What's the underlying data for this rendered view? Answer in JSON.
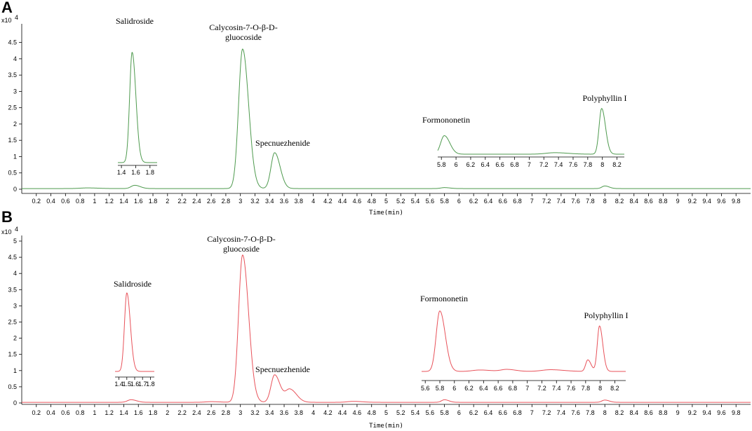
{
  "chart_data": [
    {
      "panel": "A",
      "type": "line",
      "color": "#4e9a4e",
      "scale_label": "x10",
      "scale_exp": "4",
      "xlabel": "Time(min)",
      "xlim": [
        0,
        10
      ],
      "ylim": [
        0,
        4.9
      ],
      "y_ticks": [
        "0",
        "0.5",
        "1",
        "1.5",
        "2",
        "2.5",
        "3",
        "3.5",
        "4",
        "4.5"
      ],
      "x_ticks": [
        "0.2",
        "0.4",
        "0.6",
        "0.8",
        "1",
        "1.2",
        "1.4",
        "1.6",
        "1.8",
        "2",
        "2.2",
        "2.4",
        "2.6",
        "2.8",
        "3",
        "3.2",
        "3.4",
        "3.6",
        "3.8",
        "4",
        "4.2",
        "4.4",
        "4.6",
        "4.8",
        "5",
        "5.2",
        "5.4",
        "5.6",
        "5.8",
        "6",
        "6.2",
        "6.4",
        "6.6",
        "6.8",
        "7",
        "7.2",
        "7.4",
        "7.6",
        "7.8",
        "8",
        "8.2",
        "8.4",
        "8.6",
        "8.8",
        "9",
        "9.2",
        "9.4",
        "9.6",
        "9.8"
      ],
      "baseline": 0.02,
      "peaks": [
        {
          "t": 0.9,
          "h": 0.02,
          "w": 0.1
        },
        {
          "t": 1.55,
          "h": 0.1,
          "w": 0.05
        },
        {
          "t": 3.03,
          "h": 4.28,
          "w": 0.055
        },
        {
          "t": 3.47,
          "h": 1.1,
          "w": 0.05
        },
        {
          "t": 5.8,
          "h": 0.03,
          "w": 0.05
        },
        {
          "t": 8.0,
          "h": 0.08,
          "w": 0.04
        }
      ],
      "annotations": [
        {
          "label": "Calycosin-7-O-β-D-",
          "t": 3.03
        },
        {
          "label": "gluocoside",
          "t": 3.03
        },
        {
          "label": "Specnuezhenide",
          "t": 3.47
        }
      ],
      "insets": [
        {
          "title": "Salidroside",
          "x_ticks": [
            "1.4",
            "1.6",
            "1.8"
          ],
          "xlim": [
            1.35,
            1.9
          ],
          "peaks": [
            {
              "t": 1.55,
              "h": 4.7,
              "w": 0.035
            }
          ],
          "baseline": 0.85
        },
        {
          "title": "Formononetin",
          "x_ticks": [
            "5.8",
            "6",
            "6.2",
            "6.4",
            "6.6",
            "6.8",
            "7",
            "7.2",
            "7.4",
            "7.6",
            "7.8",
            "8",
            "8.2"
          ],
          "xlim": [
            5.75,
            8.3
          ],
          "peaks": [
            {
              "t": 5.84,
              "h": 1.85,
              "w": 0.05
            },
            {
              "t": 7.35,
              "h": 1.16,
              "w": 0.12
            },
            {
              "t": 7.99,
              "h": 2.95,
              "w": 0.035
            }
          ],
          "baseline": 1.1,
          "second_title": "Polyphyllin I"
        }
      ]
    },
    {
      "panel": "B",
      "type": "line",
      "color": "#e8525a",
      "scale_label": "x10",
      "scale_exp": "4",
      "xlabel": "Time(min)",
      "xlim": [
        0,
        10
      ],
      "ylim": [
        0,
        5
      ],
      "y_ticks": [
        "0",
        "0.5",
        "1",
        "1.5",
        "2",
        "2.5",
        "3",
        "3.5",
        "4",
        "4.5",
        "5"
      ],
      "x_ticks": [
        "0.2",
        "0.4",
        "0.6",
        "0.8",
        "1",
        "1.2",
        "1.4",
        "1.6",
        "1.8",
        "2",
        "2.2",
        "2.4",
        "2.6",
        "2.8",
        "3",
        "3.2",
        "3.4",
        "3.6",
        "3.8",
        "4",
        "4.2",
        "4.4",
        "4.6",
        "4.8",
        "5",
        "5.2",
        "5.4",
        "5.6",
        "5.8",
        "6",
        "6.2",
        "6.4",
        "6.6",
        "6.8",
        "7",
        "7.2",
        "7.4",
        "7.6",
        "7.8",
        "8",
        "8.2",
        "8.4",
        "8.6",
        "8.8",
        "9",
        "9.2",
        "9.4",
        "9.6",
        "9.8"
      ],
      "baseline": 0.02,
      "peaks": [
        {
          "t": 1.5,
          "h": 0.08,
          "w": 0.05
        },
        {
          "t": 2.6,
          "h": 0.02,
          "w": 0.08
        },
        {
          "t": 3.03,
          "h": 4.55,
          "w": 0.055
        },
        {
          "t": 3.47,
          "h": 0.85,
          "w": 0.05
        },
        {
          "t": 3.68,
          "h": 0.4,
          "w": 0.06
        },
        {
          "t": 4.55,
          "h": 0.03,
          "w": 0.08
        },
        {
          "t": 5.8,
          "h": 0.08,
          "w": 0.04
        },
        {
          "t": 8.0,
          "h": 0.07,
          "w": 0.04
        }
      ],
      "annotations": [
        {
          "label": "Calycosin-7-O-β-D-",
          "t": 3.03
        },
        {
          "label": "gluocoside",
          "t": 3.03
        },
        {
          "label": "Specnuezhenide",
          "t": 3.47
        }
      ],
      "insets": [
        {
          "title": "Salidroside",
          "x_ticks": [
            "1.4",
            "1.5",
            "1.6",
            "1.7",
            "1.8"
          ],
          "xlim": [
            1.35,
            1.85
          ],
          "peaks": [
            {
              "t": 1.5,
              "h": 3.5,
              "w": 0.03
            }
          ],
          "baseline": 1.05
        },
        {
          "title": "Formononetin",
          "x_ticks": [
            "5.6",
            "5.8",
            "6",
            "6.2",
            "6.4",
            "6.6",
            "6.8",
            "7",
            "7.2",
            "7.4",
            "7.6",
            "7.8",
            "8",
            "8.2"
          ],
          "xlim": [
            5.55,
            8.35
          ],
          "peaks": [
            {
              "t": 5.8,
              "h": 2.92,
              "w": 0.05
            },
            {
              "t": 6.35,
              "h": 0.87,
              "w": 0.1
            },
            {
              "t": 6.72,
              "h": 0.89,
              "w": 0.08
            },
            {
              "t": 7.32,
              "h": 0.88,
              "w": 0.12
            },
            {
              "t": 7.83,
              "h": 1.22,
              "w": 0.03
            },
            {
              "t": 7.99,
              "h": 2.4,
              "w": 0.03
            }
          ],
          "baseline": 0.82,
          "second_title": "Polyphyllin I"
        }
      ]
    }
  ]
}
